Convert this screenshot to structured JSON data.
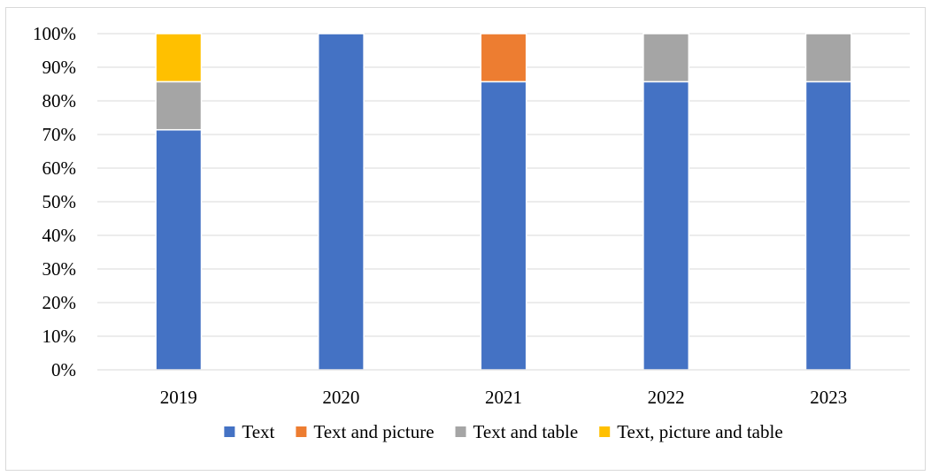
{
  "chart_data": {
    "type": "bar",
    "stacked": true,
    "categories": [
      "2019",
      "2020",
      "2021",
      "2022",
      "2023"
    ],
    "series": [
      {
        "name": "Text",
        "color": "#4472C4",
        "values": [
          71.4,
          100,
          85.7,
          85.7,
          85.7
        ]
      },
      {
        "name": "Text and picture",
        "color": "#ED7D31",
        "values": [
          0,
          0,
          14.3,
          0,
          0
        ]
      },
      {
        "name": "Text and table",
        "color": "#A5A5A5",
        "values": [
          14.3,
          0,
          0,
          14.3,
          14.3
        ]
      },
      {
        "name": "Text, picture and table",
        "color": "#FFC000",
        "values": [
          14.3,
          0,
          0,
          0,
          0
        ]
      }
    ],
    "yticks": [
      "0%",
      "10%",
      "20%",
      "30%",
      "40%",
      "50%",
      "60%",
      "70%",
      "80%",
      "90%",
      "100%"
    ],
    "ylim": [
      0,
      100
    ],
    "grid": true,
    "legend": "bottom",
    "title": "",
    "xlabel": "",
    "ylabel": ""
  }
}
